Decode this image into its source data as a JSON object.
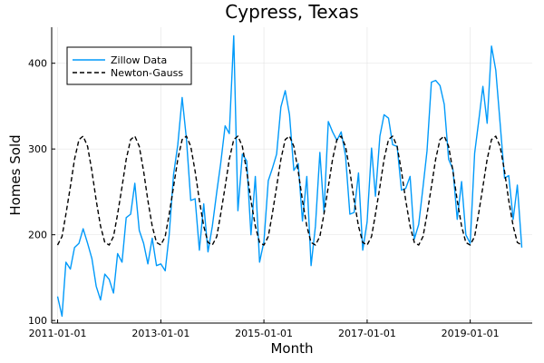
{
  "chart_data": {
    "type": "line",
    "title": "Cypress, Texas",
    "xlabel": "Month",
    "ylabel": "Homes Sold",
    "xlim": [
      "2010-11-20",
      "2020-03-15"
    ],
    "ylim": [
      97,
      442
    ],
    "x_ticks": [
      "2011-01-01",
      "2013-01-01",
      "2015-01-01",
      "2017-01-01",
      "2019-01-01"
    ],
    "y_ticks": [
      100,
      200,
      300,
      400
    ],
    "grid": true,
    "legend": {
      "position": "top-left",
      "entries": [
        "Zillow Data",
        "Newton-Gauss"
      ]
    },
    "series": [
      {
        "name": "Zillow Data",
        "style": "solid",
        "color": "#009AFA",
        "x": [
          "2011-01-01",
          "2011-02-01",
          "2011-03-01",
          "2011-04-01",
          "2011-05-01",
          "2011-06-01",
          "2011-07-01",
          "2011-08-01",
          "2011-09-01",
          "2011-10-01",
          "2011-11-01",
          "2011-12-01",
          "2012-01-01",
          "2012-02-01",
          "2012-03-01",
          "2012-04-01",
          "2012-05-01",
          "2012-06-01",
          "2012-07-01",
          "2012-08-01",
          "2012-09-01",
          "2012-10-01",
          "2012-11-01",
          "2012-12-01",
          "2013-01-01",
          "2013-02-01",
          "2013-03-01",
          "2013-04-01",
          "2013-05-01",
          "2013-06-01",
          "2013-07-01",
          "2013-08-01",
          "2013-09-01",
          "2013-10-01",
          "2013-11-01",
          "2013-12-01",
          "2014-01-01",
          "2014-02-01",
          "2014-03-01",
          "2014-04-01",
          "2014-05-01",
          "2014-06-01",
          "2014-07-01",
          "2014-08-01",
          "2014-09-01",
          "2014-10-01",
          "2014-11-01",
          "2014-12-01",
          "2015-01-01",
          "2015-02-01",
          "2015-03-01",
          "2015-04-01",
          "2015-05-01",
          "2015-06-01",
          "2015-07-01",
          "2015-08-01",
          "2015-09-01",
          "2015-10-01",
          "2015-11-01",
          "2015-12-01",
          "2016-01-01",
          "2016-02-01",
          "2016-03-01",
          "2016-04-01",
          "2016-05-01",
          "2016-06-01",
          "2016-07-01",
          "2016-08-01",
          "2016-09-01",
          "2016-10-01",
          "2016-11-01",
          "2016-12-01",
          "2017-01-01",
          "2017-02-01",
          "2017-03-01",
          "2017-04-01",
          "2017-05-01",
          "2017-06-01",
          "2017-07-01",
          "2017-08-01",
          "2017-09-01",
          "2017-10-01",
          "2017-11-01",
          "2017-12-01",
          "2018-01-01",
          "2018-02-01",
          "2018-03-01",
          "2018-04-01",
          "2018-05-01",
          "2018-06-01",
          "2018-07-01",
          "2018-08-01",
          "2018-09-01",
          "2018-10-01",
          "2018-11-01",
          "2018-12-01",
          "2019-01-01",
          "2019-02-01",
          "2019-03-01",
          "2019-04-01",
          "2019-05-01",
          "2019-06-01",
          "2019-07-01",
          "2019-08-01",
          "2019-09-01",
          "2019-10-01",
          "2019-11-01",
          "2019-12-01",
          "2020-01-01"
        ],
        "values": [
          128,
          105,
          168,
          160,
          185,
          190,
          207,
          190,
          172,
          140,
          124,
          154,
          148,
          132,
          178,
          168,
          220,
          224,
          260,
          205,
          190,
          166,
          196,
          164,
          166,
          158,
          200,
          270,
          305,
          360,
          312,
          240,
          242,
          182,
          236,
          180,
          210,
          250,
          283,
          327,
          318,
          432,
          228,
          294,
          286,
          200,
          268,
          168,
          192,
          263,
          277,
          294,
          349,
          368,
          340,
          275,
          283,
          216,
          268,
          164,
          210,
          296,
          226,
          332,
          320,
          310,
          320,
          292,
          224,
          226,
          272,
          182,
          215,
          301,
          245,
          315,
          340,
          336,
          305,
          303,
          252,
          254,
          268,
          195,
          212,
          256,
          298,
          378,
          380,
          374,
          352,
          288,
          276,
          218,
          262,
          200,
          190,
          295,
          331,
          373,
          330,
          420,
          392,
          330,
          266,
          269,
          218,
          258,
          185
        ]
      },
      {
        "name": "Newton-Gauss",
        "style": "dashed",
        "color": "#000000",
        "x": [
          "2011-01-01",
          "2011-02-01",
          "2011-03-01",
          "2011-04-01",
          "2011-05-01",
          "2011-06-01",
          "2011-07-01",
          "2011-08-01",
          "2011-09-01",
          "2011-10-01",
          "2011-11-01",
          "2011-12-01",
          "2012-01-01",
          "2012-02-01",
          "2012-03-01",
          "2012-04-01",
          "2012-05-01",
          "2012-06-01",
          "2012-07-01",
          "2012-08-01",
          "2012-09-01",
          "2012-10-01",
          "2012-11-01",
          "2012-12-01",
          "2013-01-01",
          "2013-02-01",
          "2013-03-01",
          "2013-04-01",
          "2013-05-01",
          "2013-06-01",
          "2013-07-01",
          "2013-08-01",
          "2013-09-01",
          "2013-10-01",
          "2013-11-01",
          "2013-12-01",
          "2014-01-01",
          "2014-02-01",
          "2014-03-01",
          "2014-04-01",
          "2014-05-01",
          "2014-06-01",
          "2014-07-01",
          "2014-08-01",
          "2014-09-01",
          "2014-10-01",
          "2014-11-01",
          "2014-12-01",
          "2015-01-01",
          "2015-02-01",
          "2015-03-01",
          "2015-04-01",
          "2015-05-01",
          "2015-06-01",
          "2015-07-01",
          "2015-08-01",
          "2015-09-01",
          "2015-10-01",
          "2015-11-01",
          "2015-12-01",
          "2016-01-01",
          "2016-02-01",
          "2016-03-01",
          "2016-04-01",
          "2016-05-01",
          "2016-06-01",
          "2016-07-01",
          "2016-08-01",
          "2016-09-01",
          "2016-10-01",
          "2016-11-01",
          "2016-12-01",
          "2017-01-01",
          "2017-02-01",
          "2017-03-01",
          "2017-04-01",
          "2017-05-01",
          "2017-06-01",
          "2017-07-01",
          "2017-08-01",
          "2017-09-01",
          "2017-10-01",
          "2017-11-01",
          "2017-12-01",
          "2018-01-01",
          "2018-02-01",
          "2018-03-01",
          "2018-04-01",
          "2018-05-01",
          "2018-06-01",
          "2018-07-01",
          "2018-08-01",
          "2018-09-01",
          "2018-10-01",
          "2018-11-01",
          "2018-12-01",
          "2019-01-01",
          "2019-02-01",
          "2019-03-01",
          "2019-04-01",
          "2019-05-01",
          "2019-06-01",
          "2019-07-01",
          "2019-08-01",
          "2019-09-01",
          "2019-10-01",
          "2019-11-01",
          "2019-12-01",
          "2020-01-01"
        ],
        "values": [
          188,
          198,
          224,
          256,
          288,
          311,
          315,
          303,
          274,
          240,
          210,
          191,
          188,
          198,
          224,
          256,
          288,
          311,
          315,
          303,
          274,
          240,
          210,
          191,
          188,
          198,
          224,
          256,
          288,
          311,
          315,
          303,
          274,
          240,
          210,
          191,
          188,
          198,
          224,
          256,
          288,
          311,
          315,
          303,
          274,
          240,
          210,
          191,
          188,
          198,
          224,
          256,
          288,
          311,
          315,
          303,
          274,
          240,
          210,
          191,
          188,
          198,
          224,
          256,
          288,
          311,
          315,
          303,
          274,
          240,
          210,
          191,
          188,
          198,
          224,
          256,
          288,
          311,
          315,
          303,
          274,
          240,
          210,
          191,
          188,
          198,
          224,
          256,
          288,
          311,
          315,
          303,
          274,
          240,
          210,
          191,
          188,
          198,
          224,
          256,
          288,
          311,
          315,
          303,
          274,
          240,
          210,
          191,
          188
        ]
      }
    ]
  }
}
